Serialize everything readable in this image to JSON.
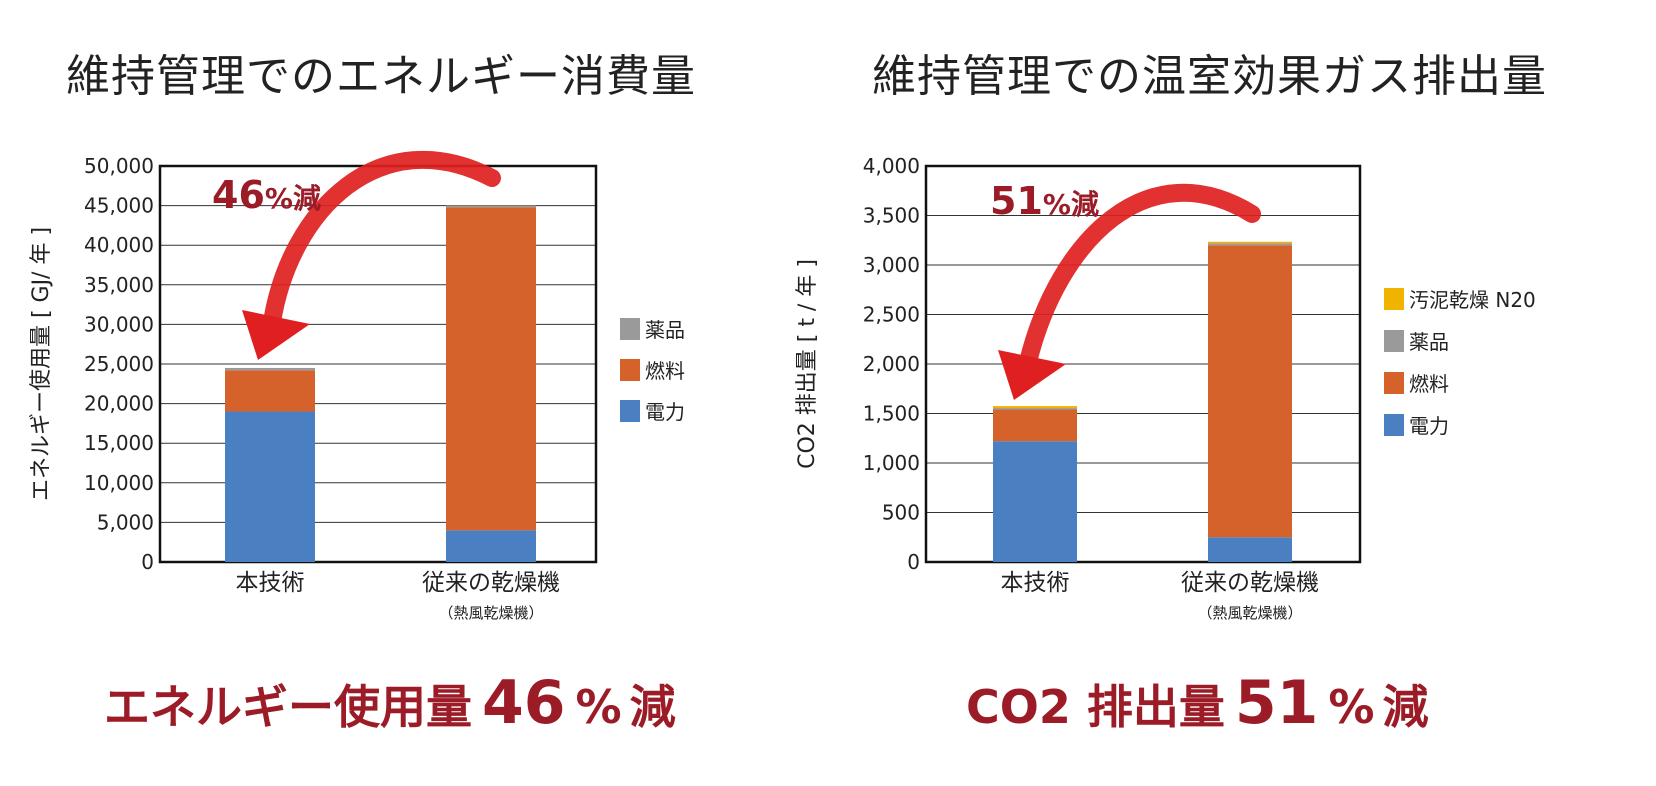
{
  "colors": {
    "electricity": "#4a7fc1",
    "fuel": "#d4622a",
    "chemicals": "#9a9a9a",
    "sludge": "#f0b400",
    "accent": "#9b1b27",
    "arrow": "#e02020"
  },
  "chart_data": [
    {
      "type": "bar",
      "stacked": true,
      "title": "維持管理でのエネルギー消費量",
      "ylabel": "エネルギー使用量 [ GJ/ 年 ]",
      "ylim": [
        0,
        50000
      ],
      "yticks": [
        "0",
        "5,000",
        "10,000",
        "15,000",
        "20,000",
        "25,000",
        "30,000",
        "35,000",
        "40,000",
        "45,000",
        "50,000"
      ],
      "categories": [
        "本技術",
        "従来の乾燥機"
      ],
      "category_sublabels": [
        "",
        "（熱風乾燥機）"
      ],
      "series": [
        {
          "name": "電力",
          "color_key": "electricity",
          "values": [
            19000,
            4000
          ]
        },
        {
          "name": "燃料",
          "color_key": "fuel",
          "values": [
            5200,
            40800
          ]
        },
        {
          "name": "薬品",
          "color_key": "chemicals",
          "values": [
            300,
            200
          ]
        }
      ],
      "legend": [
        "薬品",
        "燃料",
        "電力"
      ],
      "legend_position": "right",
      "annotation": {
        "num": "46",
        "pct": "%",
        "suffix": "減"
      },
      "grid": true
    },
    {
      "type": "bar",
      "stacked": true,
      "title": "維持管理での温室効果ガス排出量",
      "ylabel": "CO2 排出量 [ t / 年 ]",
      "ylim": [
        0,
        4000
      ],
      "yticks": [
        "0",
        "500",
        "1,000",
        "1,500",
        "2,000",
        "2,500",
        "3,000",
        "3,500",
        "4,000"
      ],
      "categories": [
        "本技術",
        "従来の乾燥機"
      ],
      "category_sublabels": [
        "",
        "（熱風乾燥機）"
      ],
      "series": [
        {
          "name": "電力",
          "color_key": "electricity",
          "values": [
            1220,
            250
          ]
        },
        {
          "name": "燃料",
          "color_key": "fuel",
          "values": [
            320,
            2950
          ]
        },
        {
          "name": "薬品",
          "color_key": "chemicals",
          "values": [
            15,
            20
          ]
        },
        {
          "name": "汚泥乾燥 N20",
          "color_key": "sludge",
          "values": [
            20,
            15
          ]
        }
      ],
      "legend": [
        "汚泥乾燥 N20",
        "薬品",
        "燃料",
        "電力"
      ],
      "legend_position": "right",
      "annotation": {
        "num": "51",
        "pct": "%",
        "suffix": "減"
      },
      "grid": true
    }
  ],
  "headlines": {
    "left": {
      "text": "エネルギー使用量",
      "num": "46",
      "pct": "%",
      "suffix": "減"
    },
    "right": {
      "text": "CO2 排出量",
      "num": "51",
      "pct": "%",
      "suffix": "減"
    }
  }
}
